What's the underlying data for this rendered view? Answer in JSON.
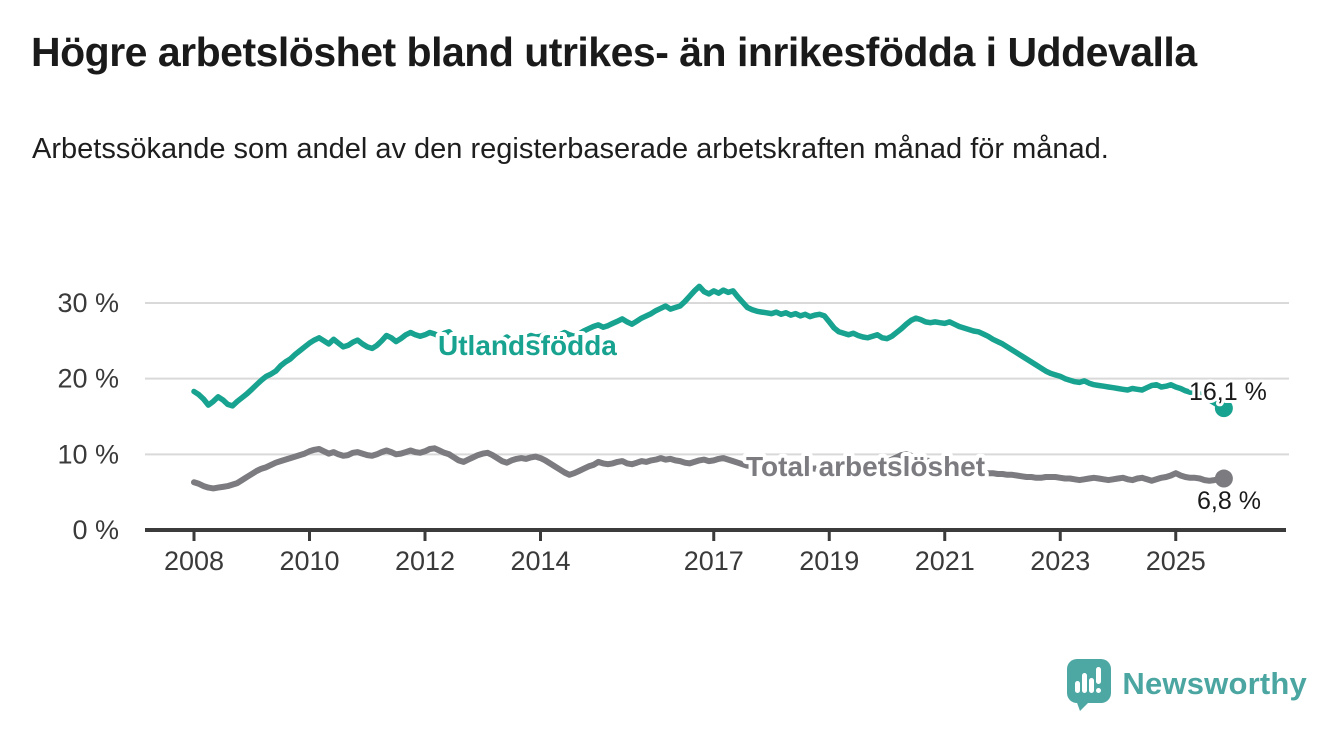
{
  "header": {
    "title": "Högre arbetslöshet bland utrikes- än inrikesfödda i Uddevalla",
    "subtitle": "Arbetssökande som andel av den registerbaserade arbetskraften månad för månad."
  },
  "footer": {
    "logo_text": "Newsworthy",
    "logo_color": "#4ba6a2"
  },
  "chart_data": {
    "type": "line",
    "title": "Högre arbetslöshet bland utrikes- än inrikesfödda i Uddevalla",
    "subtitle": "Arbetssökande som andel av den registerbaserade arbetskraften månad för månad.",
    "frequency": "monthly",
    "start_year": 2008,
    "start_month": 1,
    "unit": "%",
    "grid": true,
    "legend_position": "inline",
    "ylim": [
      0,
      33
    ],
    "y_ticks": [
      {
        "value": 0,
        "label": "0 %"
      },
      {
        "value": 10,
        "label": "10 %"
      },
      {
        "value": 20,
        "label": "20 %"
      },
      {
        "value": 30,
        "label": "30 %"
      }
    ],
    "x_ticks": [
      {
        "year": 2008,
        "label": "2008"
      },
      {
        "year": 2010,
        "label": "2010"
      },
      {
        "year": 2012,
        "label": "2012"
      },
      {
        "year": 2014,
        "label": "2014"
      },
      {
        "year": 2017,
        "label": "2017"
      },
      {
        "year": 2019,
        "label": "2019"
      },
      {
        "year": 2021,
        "label": "2021"
      },
      {
        "year": 2023,
        "label": "2023"
      },
      {
        "year": 2025,
        "label": "2025"
      }
    ],
    "series": [
      {
        "id": "utlandsfodda",
        "name": "Utlandsfödda",
        "color": "#17a38f",
        "stroke_width": 5.5,
        "end_label": "16,1 %",
        "end_value": 16.1,
        "inline_label": {
          "text": "Utlandsfödda",
          "x": 438,
          "y": 355
        },
        "end_label_pos": {
          "x": 1189,
          "y": 400
        },
        "values": [
          18.3,
          17.9,
          17.3,
          16.5,
          17.0,
          17.6,
          17.2,
          16.6,
          16.4,
          17.0,
          17.5,
          18.0,
          18.6,
          19.2,
          19.8,
          20.3,
          20.6,
          21.0,
          21.7,
          22.2,
          22.6,
          23.2,
          23.7,
          24.2,
          24.7,
          25.1,
          25.4,
          25.0,
          24.6,
          25.2,
          24.7,
          24.2,
          24.4,
          24.8,
          25.1,
          24.6,
          24.2,
          24.0,
          24.4,
          25.0,
          25.7,
          25.4,
          24.9,
          25.3,
          25.8,
          26.1,
          25.8,
          25.6,
          25.8,
          26.1,
          25.9,
          25.6,
          26.0,
          26.2,
          25.5,
          25.0,
          24.6,
          24.3,
          24.6,
          24.9,
          25.2,
          24.7,
          24.3,
          24.6,
          25.1,
          25.5,
          25.0,
          24.7,
          25.0,
          25.4,
          25.7,
          25.5,
          25.6,
          25.9,
          25.7,
          25.5,
          25.8,
          26.1,
          25.8,
          25.6,
          25.9,
          26.3,
          26.6,
          26.9,
          27.1,
          26.8,
          27.0,
          27.3,
          27.6,
          27.9,
          27.5,
          27.2,
          27.6,
          28.0,
          28.3,
          28.6,
          29.0,
          29.3,
          29.6,
          29.2,
          29.4,
          29.6,
          30.2,
          30.9,
          31.6,
          32.2,
          31.5,
          31.2,
          31.6,
          31.3,
          31.7,
          31.4,
          31.6,
          30.8,
          30.1,
          29.4,
          29.1,
          28.9,
          28.8,
          28.7,
          28.6,
          28.8,
          28.5,
          28.7,
          28.4,
          28.6,
          28.3,
          28.5,
          28.2,
          28.4,
          28.5,
          28.3,
          27.5,
          26.7,
          26.2,
          26.0,
          25.8,
          26.0,
          25.7,
          25.5,
          25.4,
          25.6,
          25.8,
          25.4,
          25.3,
          25.6,
          26.1,
          26.6,
          27.2,
          27.7,
          28.0,
          27.8,
          27.5,
          27.4,
          27.5,
          27.4,
          27.3,
          27.5,
          27.2,
          26.9,
          26.7,
          26.5,
          26.3,
          26.2,
          25.9,
          25.6,
          25.2,
          24.9,
          24.6,
          24.2,
          23.8,
          23.4,
          23.0,
          22.6,
          22.2,
          21.8,
          21.4,
          21.0,
          20.7,
          20.5,
          20.3,
          20.0,
          19.8,
          19.6,
          19.5,
          19.7,
          19.4,
          19.2,
          19.1,
          19.0,
          18.9,
          18.8,
          18.7,
          18.6,
          18.5,
          18.7,
          18.6,
          18.5,
          18.8,
          19.1,
          19.2,
          18.9,
          19.0,
          19.2,
          18.9,
          18.7,
          18.4,
          18.2,
          18.3,
          18.0,
          17.6,
          17.2,
          16.8,
          16.4,
          16.1
        ]
      },
      {
        "id": "total",
        "name": "Total arbetslöshet",
        "color": "#7b7b80",
        "stroke_width": 6,
        "end_label": "6,8 %",
        "end_value": 6.8,
        "inline_label": {
          "text": "Total arbetslöshet",
          "x": 746,
          "y": 476
        },
        "end_label_pos": {
          "x": 1197,
          "y": 509
        },
        "values": [
          6.3,
          6.1,
          5.8,
          5.6,
          5.5,
          5.6,
          5.7,
          5.8,
          6.0,
          6.2,
          6.6,
          7.0,
          7.4,
          7.8,
          8.1,
          8.3,
          8.6,
          8.9,
          9.1,
          9.3,
          9.5,
          9.7,
          9.9,
          10.1,
          10.4,
          10.6,
          10.7,
          10.4,
          10.1,
          10.3,
          10.0,
          9.8,
          9.9,
          10.2,
          10.3,
          10.1,
          9.9,
          9.8,
          10.0,
          10.3,
          10.5,
          10.3,
          10.0,
          10.1,
          10.3,
          10.5,
          10.3,
          10.2,
          10.4,
          10.7,
          10.8,
          10.5,
          10.2,
          10.0,
          9.6,
          9.2,
          9.0,
          9.3,
          9.6,
          9.9,
          10.1,
          10.2,
          9.9,
          9.5,
          9.1,
          8.9,
          9.2,
          9.4,
          9.5,
          9.4,
          9.6,
          9.7,
          9.5,
          9.2,
          8.8,
          8.4,
          8.0,
          7.6,
          7.3,
          7.5,
          7.8,
          8.1,
          8.4,
          8.6,
          9.0,
          8.8,
          8.7,
          8.8,
          9.0,
          9.1,
          8.8,
          8.7,
          8.9,
          9.1,
          9.0,
          9.2,
          9.3,
          9.5,
          9.3,
          9.4,
          9.2,
          9.1,
          8.9,
          8.8,
          9.0,
          9.2,
          9.3,
          9.1,
          9.2,
          9.4,
          9.5,
          9.3,
          9.1,
          8.9,
          8.7,
          8.5,
          8.4,
          8.6,
          8.8,
          8.9,
          8.7,
          8.5,
          8.3,
          8.2,
          8.1,
          8.3,
          8.5,
          8.4,
          8.2,
          8.1,
          8.3,
          8.5,
          8.6,
          8.4,
          8.3,
          8.5,
          8.7,
          8.6,
          8.4,
          8.3,
          8.5,
          8.7,
          8.8,
          8.9,
          9.0,
          9.3,
          9.6,
          9.9,
          10.0,
          9.8,
          9.6,
          9.4,
          9.2,
          9.1,
          9.0,
          8.9,
          8.8,
          8.6,
          8.4,
          8.2,
          8.0,
          7.9,
          7.8,
          7.7,
          7.6,
          7.5,
          7.5,
          7.4,
          7.4,
          7.3,
          7.3,
          7.2,
          7.1,
          7.0,
          7.0,
          6.9,
          6.9,
          7.0,
          7.0,
          7.0,
          6.9,
          6.8,
          6.8,
          6.7,
          6.6,
          6.7,
          6.8,
          6.9,
          6.8,
          6.7,
          6.6,
          6.7,
          6.8,
          6.9,
          6.7,
          6.6,
          6.8,
          6.9,
          6.7,
          6.5,
          6.7,
          6.9,
          7.0,
          7.2,
          7.5,
          7.2,
          7.0,
          6.9,
          6.9,
          6.8,
          6.6,
          6.5,
          6.6,
          6.7,
          6.8
        ]
      }
    ]
  }
}
